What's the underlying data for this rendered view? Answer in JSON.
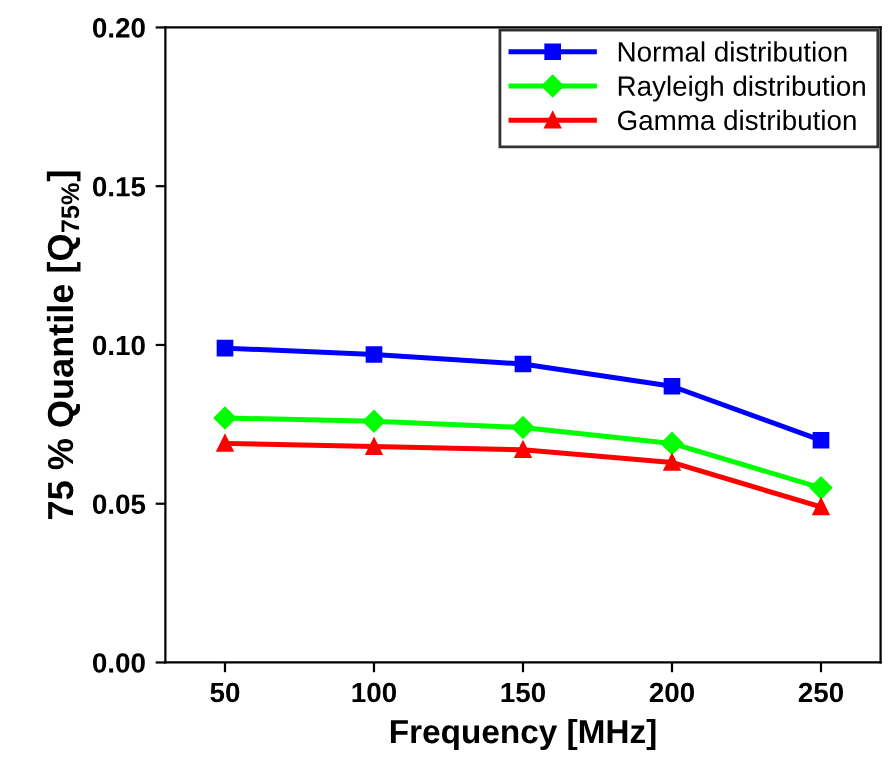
{
  "chart_data": {
    "type": "line",
    "xlabel": "Frequency [MHz]",
    "ylabel": "75 % Quantile [Q$_{75%}$]",
    "x": [
      50,
      100,
      150,
      200,
      250
    ],
    "series": [
      {
        "name": "Normal distribution",
        "color": "#0000ff",
        "marker": "square",
        "values": [
          0.099,
          0.097,
          0.094,
          0.087,
          0.07
        ]
      },
      {
        "name": "Rayleigh distribution",
        "color": "#00ff00",
        "marker": "diamond",
        "values": [
          0.077,
          0.076,
          0.074,
          0.069,
          0.055
        ]
      },
      {
        "name": "Gamma distribution",
        "color": "#ff0000",
        "marker": "triangle",
        "values": [
          0.069,
          0.068,
          0.067,
          0.063,
          0.049
        ]
      }
    ],
    "xlim": [
      30,
      270
    ],
    "ylim": [
      0,
      0.2
    ],
    "xticks": [
      50,
      100,
      150,
      200,
      250
    ],
    "yticks": [
      {
        "value": 0,
        "label": "0.00"
      },
      {
        "value": 0.05,
        "label": "0.05"
      },
      {
        "value": 0.1,
        "label": "0.10"
      },
      {
        "value": 0.15,
        "label": "0.15"
      },
      {
        "value": 0.2,
        "label": "0.20"
      }
    ],
    "legend": "top right",
    "grid": false,
    "line_style": "solid"
  }
}
